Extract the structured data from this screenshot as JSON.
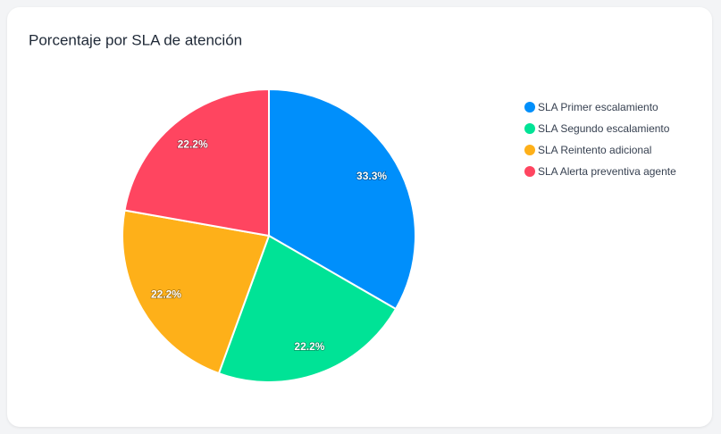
{
  "chart_data": {
    "type": "pie",
    "title": "Porcentaje por SLA de atención",
    "categories": [
      "SLA Primer escalamiento",
      "SLA Segundo escalamiento",
      "SLA Reintento adicional",
      "SLA Alerta preventiva agente"
    ],
    "values": [
      33.3,
      22.2,
      22.2,
      22.2
    ],
    "value_labels": [
      "33.3%",
      "22.2%",
      "22.2%",
      "22.2%"
    ],
    "colors": [
      "#008ffb",
      "#00e396",
      "#feb019",
      "#ff4560"
    ],
    "legend": "right"
  }
}
